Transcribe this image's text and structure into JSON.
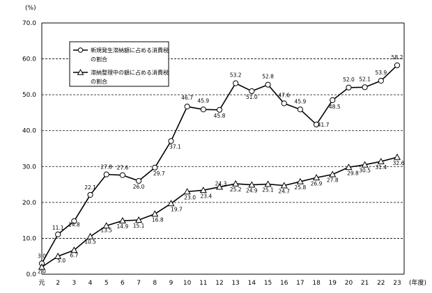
{
  "chart_data": {
    "type": "line",
    "ylabel": "(%)",
    "xlabel": "(年度)",
    "ylim": [
      0,
      70
    ],
    "yticks": [
      "0.0",
      "10.0",
      "20.0",
      "30.0",
      "40.0",
      "50.0",
      "60.0",
      "70.0"
    ],
    "categories": [
      "元",
      "2",
      "3",
      "4",
      "5",
      "6",
      "7",
      "8",
      "9",
      "10",
      "11",
      "12",
      "13",
      "14",
      "15",
      "16",
      "17",
      "18",
      "19",
      "20",
      "21",
      "22",
      "23"
    ],
    "grid": "horizontal-dashed",
    "legend_position": "top-left",
    "series": [
      {
        "name": "新規発生滞納額に占める消費税の割合",
        "marker": "circle",
        "values": [
          3.0,
          11.1,
          14.8,
          22.1,
          27.8,
          27.6,
          26.0,
          29.7,
          37.1,
          46.7,
          45.9,
          45.8,
          53.2,
          51.0,
          52.8,
          47.6,
          45.9,
          41.7,
          48.5,
          52.0,
          52.1,
          53.9,
          58.2
        ],
        "labels": [
          "3.0",
          "11.1",
          "14.8",
          "22.1",
          "27.8",
          "27.6",
          "26.0",
          "29.7",
          "37.1",
          "46.7",
          "45.9",
          "45.8",
          "53.2",
          "51.0",
          "52.8",
          "47.6",
          "45.9",
          "41.7",
          "48.5",
          "52.0",
          "52.1",
          "53.9",
          "58.2"
        ]
      },
      {
        "name": "滞納整理中の額に占める消費税の割合",
        "marker": "triangle",
        "values": [
          2.0,
          5.0,
          6.7,
          10.5,
          13.5,
          14.9,
          15.1,
          16.8,
          19.7,
          23.0,
          23.4,
          24.3,
          25.2,
          24.9,
          25.1,
          24.7,
          25.8,
          26.9,
          27.8,
          29.8,
          30.5,
          31.4,
          32.6
        ],
        "labels": [
          "2.0",
          "5.0",
          "6.7",
          "10.5",
          "13.5",
          "14.9",
          "15.1",
          "16.8",
          "19.7",
          "23.0",
          "23.4",
          "24.3",
          "25.2",
          "24.9",
          "25.1",
          "24.7",
          "25.8",
          "26.9",
          "27.8",
          "29.8",
          "30.5",
          "31.4",
          "32.6"
        ]
      }
    ]
  }
}
